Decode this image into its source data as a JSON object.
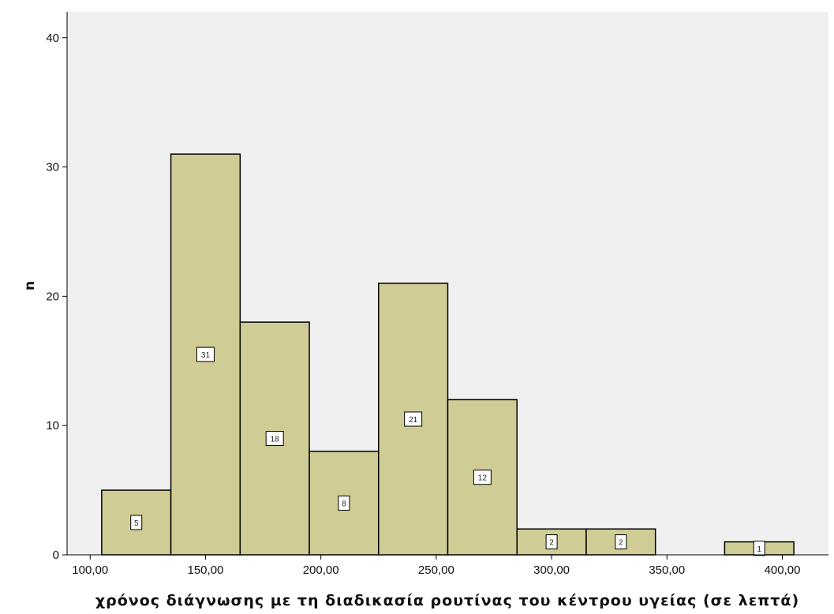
{
  "chart_data": {
    "type": "bar",
    "title": "",
    "xlabel": "χρόνος διάγνωσης με τη διαδικασία ρουτίνας του κέντρου υγείας (σε λεπτά)",
    "ylabel": "n",
    "xlim": [
      90,
      420
    ],
    "ylim": [
      0,
      42
    ],
    "x_ticks": [
      100,
      150,
      200,
      250,
      300,
      350,
      400
    ],
    "x_tick_labels": [
      "100,00",
      "150,00",
      "200,00",
      "250,00",
      "300,00",
      "350,00",
      "400,00"
    ],
    "y_ticks": [
      0,
      10,
      20,
      30,
      40
    ],
    "y_tick_labels": [
      "0",
      "10",
      "20",
      "30",
      "40"
    ],
    "bin_edges": [
      105,
      135,
      165,
      195,
      225,
      255,
      285,
      315,
      345,
      375,
      405
    ],
    "values": [
      5,
      31,
      18,
      8,
      21,
      12,
      2,
      2,
      0,
      1
    ],
    "data_labels": [
      "5",
      "31",
      "18",
      "8",
      "21",
      "12",
      "2",
      "2",
      "",
      "1"
    ],
    "grid": false,
    "bar_color": "#cfcc95",
    "bar_edge_color": "#000000",
    "plot_background": "#f0f0f0"
  }
}
